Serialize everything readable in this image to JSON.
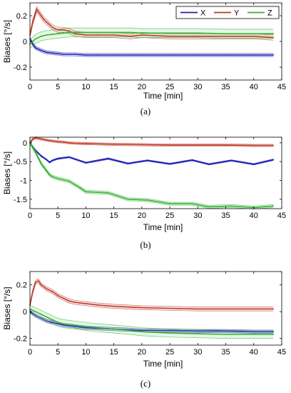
{
  "chart_data": [
    {
      "type": "line",
      "caption": "(a)",
      "xlabel": "Time [min]",
      "ylabel": "Biases [°/s]",
      "xlim": [
        0,
        45
      ],
      "ylim": [
        -0.3,
        0.3
      ],
      "xticks": [
        0,
        5,
        10,
        15,
        20,
        25,
        30,
        35,
        40,
        45
      ],
      "yticks": [
        -0.2,
        0,
        0.2
      ],
      "ytick_labels": [
        "-0.2",
        "0",
        "0.2"
      ],
      "grid": false,
      "legend": {
        "position": "top-right",
        "entries": [
          "X",
          "Y",
          "Z"
        ]
      },
      "series": [
        {
          "name": "X",
          "color": "#1f1fb4",
          "band": 0.012,
          "x": [
            0,
            0.5,
            1,
            1.5,
            2,
            3,
            4,
            5,
            6,
            7,
            8,
            10,
            12,
            15,
            18,
            20,
            25,
            30,
            35,
            40,
            43.5
          ],
          "y": [
            0.02,
            -0.02,
            -0.05,
            -0.06,
            -0.07,
            -0.085,
            -0.09,
            -0.095,
            -0.1,
            -0.1,
            -0.1,
            -0.105,
            -0.105,
            -0.105,
            -0.105,
            -0.105,
            -0.105,
            -0.105,
            -0.105,
            -0.105,
            -0.105
          ]
        },
        {
          "name": "Y",
          "color": "#c0392b",
          "band": 0.02,
          "x": [
            0,
            0.5,
            1,
            1.2,
            1.5,
            2,
            2.5,
            3,
            3.5,
            4,
            5,
            6,
            7,
            8,
            10,
            12,
            15,
            18,
            20,
            25,
            30,
            35,
            40,
            43.5
          ],
          "y": [
            0.05,
            0.15,
            0.22,
            0.25,
            0.23,
            0.2,
            0.17,
            0.15,
            0.13,
            0.11,
            0.09,
            0.09,
            0.08,
            0.06,
            0.05,
            0.05,
            0.05,
            0.04,
            0.05,
            0.04,
            0.04,
            0.04,
            0.04,
            0.03
          ]
        },
        {
          "name": "Z",
          "color": "#33b333",
          "band": 0.035,
          "x": [
            0,
            0.5,
            1,
            1.5,
            2,
            3,
            4,
            5,
            6,
            7,
            8,
            10,
            12,
            15,
            18,
            20,
            25,
            30,
            35,
            40,
            43.5
          ],
          "y": [
            -0.02,
            0.0,
            0.02,
            0.03,
            0.04,
            0.05,
            0.055,
            0.06,
            0.065,
            0.07,
            0.07,
            0.07,
            0.07,
            0.07,
            0.07,
            0.065,
            0.065,
            0.065,
            0.06,
            0.06,
            0.06
          ]
        }
      ]
    },
    {
      "type": "line",
      "caption": "(b)",
      "xlabel": "Time [min]",
      "ylabel": "Biases [°/s]",
      "xlim": [
        0,
        45
      ],
      "ylim": [
        -1.75,
        0.15
      ],
      "xticks": [
        0,
        5,
        10,
        15,
        20,
        25,
        30,
        35,
        40,
        45
      ],
      "yticks": [
        -1.5,
        -1,
        -0.5,
        0
      ],
      "ytick_labels": [
        "-1.5",
        "-1",
        "-0.5",
        "0"
      ],
      "grid": false,
      "series": [
        {
          "name": "X",
          "color": "#1f1fb4",
          "band": 0.02,
          "x": [
            0,
            1,
            2,
            3,
            3.5,
            4,
            5,
            7,
            10,
            14,
            17.5,
            21,
            25,
            29,
            32,
            36,
            40,
            43.5
          ],
          "y": [
            0.0,
            -0.2,
            -0.35,
            -0.45,
            -0.52,
            -0.47,
            -0.42,
            -0.38,
            -0.53,
            -0.42,
            -0.55,
            -0.47,
            -0.56,
            -0.46,
            -0.57,
            -0.47,
            -0.57,
            -0.45
          ]
        },
        {
          "name": "Y",
          "color": "#c0392b",
          "band": 0.03,
          "x": [
            0,
            0.5,
            1,
            1.5,
            2,
            3,
            4,
            5,
            6,
            7,
            8,
            10,
            15,
            20,
            25,
            30,
            35,
            40,
            43.5
          ],
          "y": [
            0.0,
            0.1,
            0.13,
            0.12,
            0.1,
            0.07,
            0.05,
            0.03,
            0.02,
            0.0,
            -0.01,
            -0.02,
            -0.04,
            -0.05,
            -0.06,
            -0.06,
            -0.06,
            -0.07,
            -0.07
          ]
        },
        {
          "name": "Z",
          "color": "#33b333",
          "band": 0.04,
          "x": [
            0,
            1,
            2,
            3,
            3.5,
            4,
            5,
            7,
            9,
            10,
            14,
            17.5,
            21,
            25,
            29,
            32,
            36,
            40,
            43.5
          ],
          "y": [
            0.0,
            -0.25,
            -0.55,
            -0.75,
            -0.85,
            -0.9,
            -0.95,
            -1.02,
            -1.2,
            -1.3,
            -1.33,
            -1.5,
            -1.52,
            -1.62,
            -1.62,
            -1.7,
            -1.68,
            -1.72,
            -1.68
          ]
        }
      ]
    },
    {
      "type": "line",
      "caption": "(c)",
      "xlabel": "Time [min]",
      "ylabel": "Biases [°/s]",
      "xlim": [
        0,
        45
      ],
      "ylim": [
        -0.25,
        0.3
      ],
      "xticks": [
        0,
        5,
        10,
        15,
        20,
        25,
        30,
        35,
        40,
        45
      ],
      "yticks": [
        -0.2,
        0,
        0.2
      ],
      "ytick_labels": [
        "-0.2",
        "0",
        "0.2"
      ],
      "grid": false,
      "series": [
        {
          "name": "X",
          "color": "#1f1fb4",
          "band": 0.012,
          "x": [
            0,
            1,
            2,
            3,
            4,
            5,
            6,
            8,
            10,
            12,
            15,
            18,
            20,
            25,
            30,
            35,
            40,
            43.5
          ],
          "y": [
            0.0,
            -0.03,
            -0.05,
            -0.07,
            -0.08,
            -0.09,
            -0.1,
            -0.11,
            -0.12,
            -0.125,
            -0.13,
            -0.135,
            -0.14,
            -0.14,
            -0.145,
            -0.145,
            -0.15,
            -0.15
          ]
        },
        {
          "name": "Y",
          "color": "#c0392b",
          "band": 0.015,
          "x": [
            0,
            0.5,
            1,
            1.5,
            2,
            3,
            4,
            5,
            6,
            7,
            8,
            10,
            12,
            15,
            20,
            25,
            30,
            35,
            40,
            43.5
          ],
          "y": [
            0.05,
            0.15,
            0.22,
            0.23,
            0.2,
            0.17,
            0.15,
            0.12,
            0.1,
            0.08,
            0.07,
            0.06,
            0.05,
            0.04,
            0.03,
            0.025,
            0.02,
            0.02,
            0.02,
            0.02
          ]
        },
        {
          "name": "Z",
          "color": "#33b333",
          "band": 0.03,
          "x": [
            0,
            1,
            2,
            3,
            4,
            5,
            6,
            8,
            10,
            12,
            15,
            18,
            20,
            25,
            30,
            35,
            40,
            43.5
          ],
          "y": [
            0.02,
            0.0,
            -0.02,
            -0.04,
            -0.06,
            -0.08,
            -0.09,
            -0.1,
            -0.11,
            -0.12,
            -0.13,
            -0.14,
            -0.15,
            -0.16,
            -0.165,
            -0.17,
            -0.17,
            -0.17
          ]
        }
      ]
    }
  ]
}
